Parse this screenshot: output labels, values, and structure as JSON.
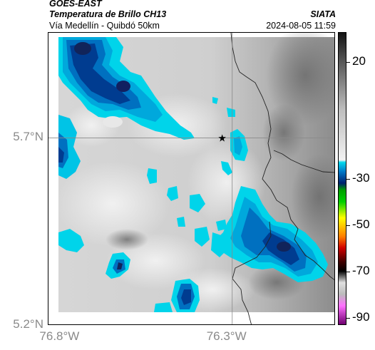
{
  "header": {
    "satellite": "GOES-EAST",
    "product": "Temperatura de Brillo CH13",
    "route": "Vía Medellín - Quibdó 50km",
    "org": "SIATA",
    "datetime": "2024-08-05 11:59"
  },
  "map": {
    "lon_range": [
      -76.85,
      -75.99
    ],
    "lat_range": [
      5.2,
      5.98
    ],
    "lon_ticks": [
      {
        "value": -76.8,
        "label": "76.8°W"
      },
      {
        "value": -76.3,
        "label": "76.3°W"
      }
    ],
    "lat_ticks": [
      {
        "value": 5.7,
        "label": "5.7°N"
      },
      {
        "value": 5.2,
        "label": "5.2°N"
      }
    ],
    "marker": {
      "lon": -76.33,
      "lat": 5.7,
      "icon": "star-icon"
    },
    "gridlines": true
  },
  "colorbar": {
    "range": [
      -93,
      33
    ],
    "ticks": [
      {
        "value": 20,
        "label": "20"
      },
      {
        "value": -30,
        "label": "-30"
      },
      {
        "value": -50,
        "label": "-50"
      },
      {
        "value": -70,
        "label": "-70"
      },
      {
        "value": -90,
        "label": "-90"
      }
    ],
    "stops": [
      {
        "value": 33,
        "color": "#141414"
      },
      {
        "value": 20,
        "color": "#5a5a5a"
      },
      {
        "value": 0,
        "color": "#bdbdbd"
      },
      {
        "value": -22,
        "color": "#f2f2f2"
      },
      {
        "value": -23,
        "color": "#00d8ec"
      },
      {
        "value": -27,
        "color": "#0078c8"
      },
      {
        "value": -32,
        "color": "#00206e"
      },
      {
        "value": -35,
        "color": "#00a000"
      },
      {
        "value": -40,
        "color": "#00d000"
      },
      {
        "value": -47,
        "color": "#ffff00"
      },
      {
        "value": -55,
        "color": "#ff8000"
      },
      {
        "value": -60,
        "color": "#d00000"
      },
      {
        "value": -66,
        "color": "#400000"
      },
      {
        "value": -70,
        "color": "#000000"
      },
      {
        "value": -75,
        "color": "#e0e0e0"
      },
      {
        "value": -80,
        "color": "#bbbbbb"
      },
      {
        "value": -85,
        "color": "#ff70ff"
      },
      {
        "value": -93,
        "color": "#700070"
      }
    ]
  }
}
